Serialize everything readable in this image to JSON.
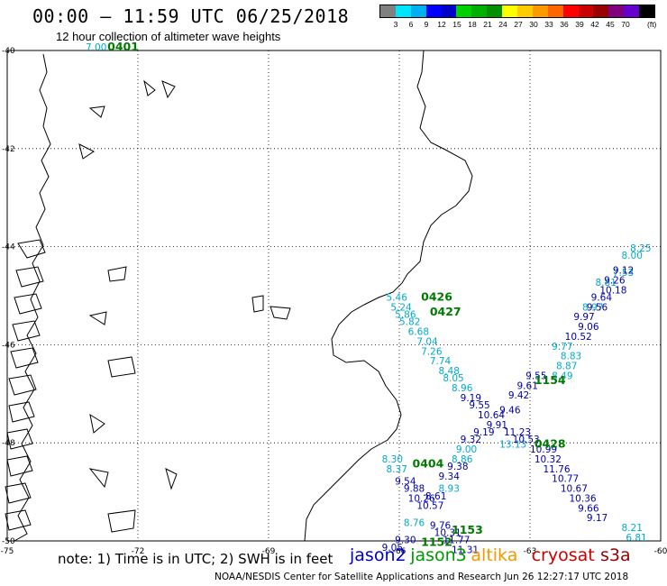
{
  "title": "00:00 – 11:59 UTC 06/25/2018",
  "subtitle": "12 hour collection of altimeter wave heights",
  "scale": {
    "colors": [
      "#808080",
      "#00e5ff",
      "#00b0f0",
      "#0000ff",
      "#0000c8",
      "#00d000",
      "#00b000",
      "#009000",
      "#ffff00",
      "#ffcc00",
      "#ff9900",
      "#ff6600",
      "#ff0000",
      "#cc0000",
      "#990000",
      "#800080",
      "#6600cc",
      "#000000"
    ],
    "labels": [
      "3",
      "6",
      "9",
      "12",
      "15",
      "18",
      "21",
      "24",
      "27",
      "30",
      "33",
      "36",
      "39",
      "42",
      "45",
      "70"
    ],
    "unit": "(ft)"
  },
  "map": {
    "lon_range": [
      -75,
      -60
    ],
    "lat_range": [
      -50,
      -40
    ],
    "x_tick_labels": [
      "-75",
      "-72",
      "-69",
      "-66",
      "-63",
      "-60"
    ],
    "y_tick_labels": [
      "-40",
      "-42",
      "-44",
      "-46",
      "-48",
      "-50"
    ]
  },
  "tracks": [
    {
      "satellite": "jason3",
      "color": "#00aacc",
      "labels": [
        {
          "text": "7.00",
          "lon": -73.2,
          "lat": -40.0
        },
        {
          "text": "5.46",
          "lon": -66.3,
          "lat": -45.1
        },
        {
          "text": "5.24",
          "lon": -66.2,
          "lat": -45.3
        },
        {
          "text": "5.86",
          "lon": -66.1,
          "lat": -45.45
        },
        {
          "text": "5.82",
          "lon": -66.0,
          "lat": -45.6
        },
        {
          "text": "6.68",
          "lon": -65.8,
          "lat": -45.8
        },
        {
          "text": "7.04",
          "lon": -65.6,
          "lat": -46.0
        },
        {
          "text": "7.26",
          "lon": -65.5,
          "lat": -46.2
        },
        {
          "text": "7.74",
          "lon": -65.3,
          "lat": -46.4
        },
        {
          "text": "8.48",
          "lon": -65.1,
          "lat": -46.6
        },
        {
          "text": "8.05",
          "lon": -65.0,
          "lat": -46.75
        },
        {
          "text": "8.96",
          "lon": -64.8,
          "lat": -46.95
        },
        {
          "text": "8.30",
          "lon": -66.4,
          "lat": -48.4
        },
        {
          "text": "8.37",
          "lon": -66.3,
          "lat": -48.6
        },
        {
          "text": "9.00",
          "lon": -64.7,
          "lat": -48.2
        },
        {
          "text": "8.86",
          "lon": -64.8,
          "lat": -48.4
        },
        {
          "text": "8.93",
          "lon": -65.1,
          "lat": -49.0
        },
        {
          "text": "8.76",
          "lon": -65.9,
          "lat": -49.7
        },
        {
          "text": "8.21",
          "lon": -60.9,
          "lat": -49.8
        },
        {
          "text": "6.81",
          "lon": -60.8,
          "lat": -50.0
        },
        {
          "text": "8.87",
          "lon": -62.4,
          "lat": -46.5
        },
        {
          "text": "8.49",
          "lon": -62.5,
          "lat": -46.7
        },
        {
          "text": "8.83",
          "lon": -62.3,
          "lat": -46.3
        },
        {
          "text": "9.77",
          "lon": -62.5,
          "lat": -46.1
        },
        {
          "text": "8.97",
          "lon": -61.8,
          "lat": -45.3
        },
        {
          "text": "8.81",
          "lon": -61.5,
          "lat": -44.8
        },
        {
          "text": "7.53",
          "lon": -61.1,
          "lat": -44.6
        },
        {
          "text": "8.00",
          "lon": -60.9,
          "lat": -44.25
        },
        {
          "text": "8.25",
          "lon": -60.7,
          "lat": -44.1
        },
        {
          "text": "13.13",
          "lon": -63.7,
          "lat": -48.1
        }
      ]
    },
    {
      "satellite": "jason2",
      "color": "#0000aa",
      "labels": [
        {
          "text": "9.19",
          "lon": -64.6,
          "lat": -47.15
        },
        {
          "text": "9.55",
          "lon": -64.4,
          "lat": -47.3
        },
        {
          "text": "10.64",
          "lon": -64.2,
          "lat": -47.5
        },
        {
          "text": "9.91",
          "lon": -64.0,
          "lat": -47.7
        },
        {
          "text": "9.19",
          "lon": -64.3,
          "lat": -47.85
        },
        {
          "text": "9.32",
          "lon": -64.6,
          "lat": -48.0
        },
        {
          "text": "9.38",
          "lon": -64.9,
          "lat": -48.55
        },
        {
          "text": "9.34",
          "lon": -65.1,
          "lat": -48.75
        },
        {
          "text": "9.54",
          "lon": -66.1,
          "lat": -48.85
        },
        {
          "text": "9.88",
          "lon": -65.9,
          "lat": -49.0
        },
        {
          "text": "10.26",
          "lon": -65.8,
          "lat": -49.2
        },
        {
          "text": "8.61",
          "lon": -65.4,
          "lat": -49.15
        },
        {
          "text": "10.57",
          "lon": -65.6,
          "lat": -49.35
        },
        {
          "text": "9.76",
          "lon": -65.3,
          "lat": -49.75
        },
        {
          "text": "10.31",
          "lon": -65.2,
          "lat": -49.9
        },
        {
          "text": "11.77",
          "lon": -65.0,
          "lat": -50.05
        },
        {
          "text": "11.31",
          "lon": -64.8,
          "lat": -50.25
        },
        {
          "text": "9.30",
          "lon": -66.1,
          "lat": -50.05
        },
        {
          "text": "9.05",
          "lon": -66.4,
          "lat": -50.2
        },
        {
          "text": "9.46",
          "lon": -63.7,
          "lat": -47.4
        },
        {
          "text": "9.42",
          "lon": -63.5,
          "lat": -47.1
        },
        {
          "text": "9.61",
          "lon": -63.3,
          "lat": -46.9
        },
        {
          "text": "9.55",
          "lon": -63.1,
          "lat": -46.7
        },
        {
          "text": "10.52",
          "lon": -62.2,
          "lat": -45.9
        },
        {
          "text": "9.06",
          "lon": -61.9,
          "lat": -45.7
        },
        {
          "text": "9.97",
          "lon": -62.0,
          "lat": -45.5
        },
        {
          "text": "9.56",
          "lon": -61.7,
          "lat": -45.3
        },
        {
          "text": "9.64",
          "lon": -61.6,
          "lat": -45.1
        },
        {
          "text": "10.18",
          "lon": -61.4,
          "lat": -44.95
        },
        {
          "text": "9.26",
          "lon": -61.3,
          "lat": -44.75
        },
        {
          "text": "9.12",
          "lon": -61.1,
          "lat": -44.55
        },
        {
          "text": "11.23",
          "lon": -63.6,
          "lat": -47.85
        },
        {
          "text": "10.53",
          "lon": -63.4,
          "lat": -48.0
        },
        {
          "text": "10.99",
          "lon": -63.0,
          "lat": -48.2
        },
        {
          "text": "10.32",
          "lon": -62.9,
          "lat": -48.4
        },
        {
          "text": "11.76",
          "lon": -62.7,
          "lat": -48.6
        },
        {
          "text": "10.77",
          "lon": -62.5,
          "lat": -48.8
        },
        {
          "text": "10.67",
          "lon": -62.3,
          "lat": -49.0
        },
        {
          "text": "10.36",
          "lon": -62.1,
          "lat": -49.2
        },
        {
          "text": "9.66",
          "lon": -61.9,
          "lat": -49.4
        },
        {
          "text": "9.17",
          "lon": -61.7,
          "lat": -49.6
        }
      ]
    }
  ],
  "pass_times": [
    {
      "text": "0401",
      "lon": -72.7,
      "lat": -40.0
    },
    {
      "text": "0426",
      "lon": -65.5,
      "lat": -45.1
    },
    {
      "text": "0427",
      "lon": -65.3,
      "lat": -45.4
    },
    {
      "text": "1154",
      "lon": -62.9,
      "lat": -46.8
    },
    {
      "text": "0428",
      "lon": -62.9,
      "lat": -48.1
    },
    {
      "text": "0404",
      "lon": -65.7,
      "lat": -48.5
    },
    {
      "text": "1153",
      "lon": -64.8,
      "lat": -49.85
    },
    {
      "text": "1152",
      "lon": -65.5,
      "lat": -50.1
    }
  ],
  "note": "note: 1) Time is in UTC; 2) SWH is in feet",
  "legend": [
    {
      "name": "jason2",
      "color": "#0000cc"
    },
    {
      "name": "jason3",
      "color": "#009900"
    },
    {
      "name": "altika",
      "color": "#ee9900"
    },
    {
      "name": "cryosat",
      "color": "#cc0000"
    },
    {
      "name": "s3a",
      "color": "#990000"
    }
  ],
  "credit": "NOAA/NESDIS Center for Satellite Applications and Research    Jun 26 12:27:17 UTC 2018"
}
